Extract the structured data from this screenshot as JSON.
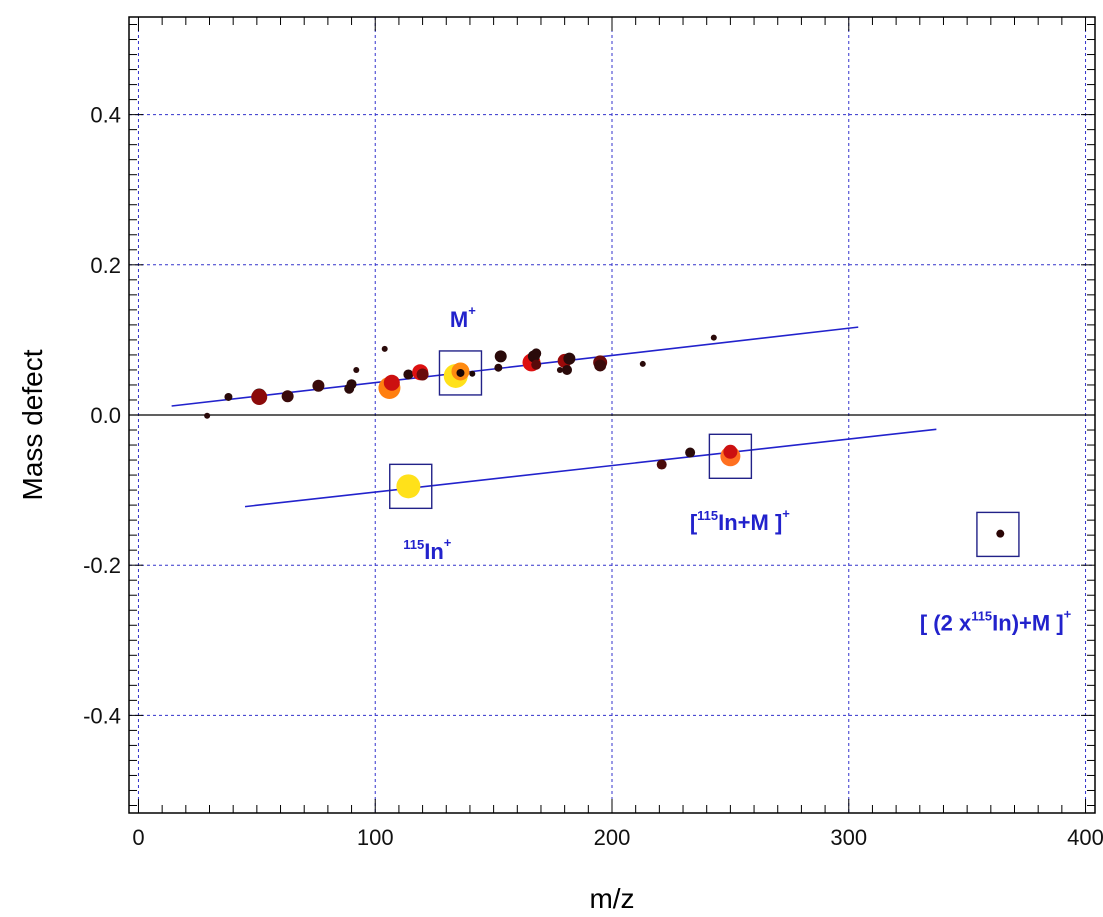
{
  "chart_data": {
    "type": "scatter",
    "xlabel": "m/z",
    "ylabel": "Mass defect",
    "xlim": [
      -4,
      404
    ],
    "ylim": [
      -0.53,
      0.53
    ],
    "xticks": [
      "0",
      "100",
      "200",
      "300",
      "400"
    ],
    "yticks": [
      "0.4",
      "0.2",
      "0.0",
      "-0.2",
      "-0.4"
    ],
    "grid": true,
    "colors": {
      "frame": "#000000",
      "grid": "#3333cc",
      "fit_line": "#2222cc",
      "annotation": "#2222cc",
      "box": "#222288"
    },
    "points": [
      {
        "x": 29,
        "y": -0.001,
        "size": 3,
        "color": "#2a0a0a"
      },
      {
        "x": 38,
        "y": 0.024,
        "size": 4,
        "color": "#2a0a0a"
      },
      {
        "x": 51,
        "y": 0.026,
        "size": 7,
        "color": "#2a0a0a"
      },
      {
        "x": 51,
        "y": 0.024,
        "size": 8,
        "color": "#8b0a0a"
      },
      {
        "x": 63,
        "y": 0.025,
        "size": 6,
        "color": "#3a0a0a"
      },
      {
        "x": 76,
        "y": 0.039,
        "size": 6,
        "color": "#3a0a0a"
      },
      {
        "x": 89,
        "y": 0.035,
        "size": 5,
        "color": "#2a0a0a"
      },
      {
        "x": 90,
        "y": 0.041,
        "size": 5,
        "color": "#2a0a0a"
      },
      {
        "x": 92,
        "y": 0.06,
        "size": 3,
        "color": "#2a0a0a"
      },
      {
        "x": 104,
        "y": 0.088,
        "size": 3,
        "color": "#2a0a0a"
      },
      {
        "x": 106,
        "y": 0.036,
        "size": 11,
        "color": "#ff7f10"
      },
      {
        "x": 107,
        "y": 0.043,
        "size": 8,
        "color": "#cc1010"
      },
      {
        "x": 114,
        "y": 0.054,
        "size": 5,
        "color": "#2a0a0a"
      },
      {
        "x": 119,
        "y": 0.057,
        "size": 8,
        "color": "#dd1010"
      },
      {
        "x": 120,
        "y": 0.054,
        "size": 6,
        "color": "#6a0a0a"
      },
      {
        "x": 134,
        "y": 0.052,
        "size": 12,
        "color": "#ffe11a"
      },
      {
        "x": 136,
        "y": 0.058,
        "size": 9,
        "color": "#ff8a10"
      },
      {
        "x": 136,
        "y": 0.056,
        "size": 4,
        "color": "#1a0505"
      },
      {
        "x": 141,
        "y": 0.055,
        "size": 3,
        "color": "#1a0505"
      },
      {
        "x": 152,
        "y": 0.063,
        "size": 4,
        "color": "#2a0a0a"
      },
      {
        "x": 153,
        "y": 0.078,
        "size": 6,
        "color": "#2a0a0a"
      },
      {
        "x": 166,
        "y": 0.07,
        "size": 9,
        "color": "#dd1010"
      },
      {
        "x": 167,
        "y": 0.078,
        "size": 6,
        "color": "#2a0a0a"
      },
      {
        "x": 168,
        "y": 0.082,
        "size": 5,
        "color": "#2a0a0a"
      },
      {
        "x": 168,
        "y": 0.067,
        "size": 5,
        "color": "#5a0a0a"
      },
      {
        "x": 178,
        "y": 0.06,
        "size": 3,
        "color": "#2a0a0a"
      },
      {
        "x": 180,
        "y": 0.072,
        "size": 7,
        "color": "#9b0a0a"
      },
      {
        "x": 181,
        "y": 0.06,
        "size": 5,
        "color": "#2a0a0a"
      },
      {
        "x": 182,
        "y": 0.075,
        "size": 6,
        "color": "#2a0a0a"
      },
      {
        "x": 195,
        "y": 0.07,
        "size": 7,
        "color": "#6a0a0a"
      },
      {
        "x": 195,
        "y": 0.066,
        "size": 6,
        "color": "#3a0a0a"
      },
      {
        "x": 213,
        "y": 0.068,
        "size": 3,
        "color": "#2a0a0a"
      },
      {
        "x": 221,
        "y": -0.066,
        "size": 5,
        "color": "#4a0a0a"
      },
      {
        "x": 233,
        "y": -0.05,
        "size": 5,
        "color": "#2a0a0a"
      },
      {
        "x": 243,
        "y": 0.103,
        "size": 3,
        "color": "#2a0a0a"
      },
      {
        "x": 114,
        "y": -0.095,
        "size": 12,
        "color": "#ffe11a"
      },
      {
        "x": 250,
        "y": -0.055,
        "size": 10,
        "color": "#ff7020"
      },
      {
        "x": 250,
        "y": -0.049,
        "size": 7,
        "color": "#cc1010"
      },
      {
        "x": 364,
        "y": -0.158,
        "size": 4,
        "color": "#2a0505"
      }
    ],
    "fit_lines": [
      {
        "x": [
          14,
          304
        ],
        "y": [
          0.012,
          0.117
        ]
      },
      {
        "x": [
          45,
          337
        ],
        "y": [
          -0.122,
          -0.019
        ]
      }
    ],
    "boxes": [
      {
        "x": 136,
        "y": 0.056
      },
      {
        "x": 115,
        "y": -0.095
      },
      {
        "x": 250,
        "y": -0.055
      },
      {
        "x": 363,
        "y": -0.159
      }
    ],
    "annotations": [
      {
        "text": "M",
        "sup": "+",
        "anchor_x": 137,
        "anchor_y": 0.117
      },
      {
        "pre_sup": "115",
        "text": "In",
        "sup": "+",
        "anchor_x": 122,
        "anchor_y": -0.192
      },
      {
        "text": "[",
        "mid_sup": "115",
        "text2": "In+M ]",
        "sup": "+",
        "anchor_x": 254,
        "anchor_y": -0.153
      },
      {
        "text": "[ (2 x",
        "mid_sup": "115",
        "text2": "In)+M ]",
        "sup": "+",
        "anchor_x": 362,
        "anchor_y": -0.287
      }
    ]
  }
}
